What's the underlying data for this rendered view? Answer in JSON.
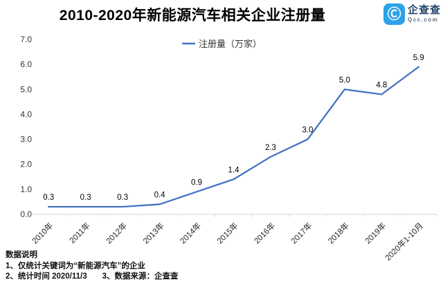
{
  "header": {
    "title": "2010-2020年新能源汽车相关企业注册量"
  },
  "logo": {
    "mark_glyph": "Ⓒ",
    "name": "企查查",
    "domain": "Qcc.com",
    "icon_color": "#2ba2e9",
    "name_color": "#25456e"
  },
  "chart_data": {
    "type": "line",
    "title": "2010-2020年新能源汽车相关企业注册量",
    "legend": "注册量（万家）",
    "legend_position": "top-center",
    "categories": [
      "2010年",
      "2011年",
      "2012年",
      "2013年",
      "2014年",
      "2015年",
      "2016年",
      "2017年",
      "2018年",
      "2019年",
      "2020年1-10月"
    ],
    "values": [
      0.3,
      0.3,
      0.3,
      0.4,
      0.9,
      1.4,
      2.3,
      3.0,
      5.0,
      4.8,
      5.9
    ],
    "xlabel": "",
    "ylabel": "",
    "ylim": [
      0,
      7
    ],
    "yticks": [
      0,
      1,
      2,
      3,
      4,
      5,
      6,
      7
    ],
    "grid": false,
    "line_color": "#4472c4",
    "data_labels": true
  },
  "notes": {
    "heading": "数据说明",
    "line1": "1、仅统计关键词为“新能源汽车”的企业",
    "line2": "2、统计时间 2020/11/3",
    "line3": "3、数据来源：企查查"
  }
}
